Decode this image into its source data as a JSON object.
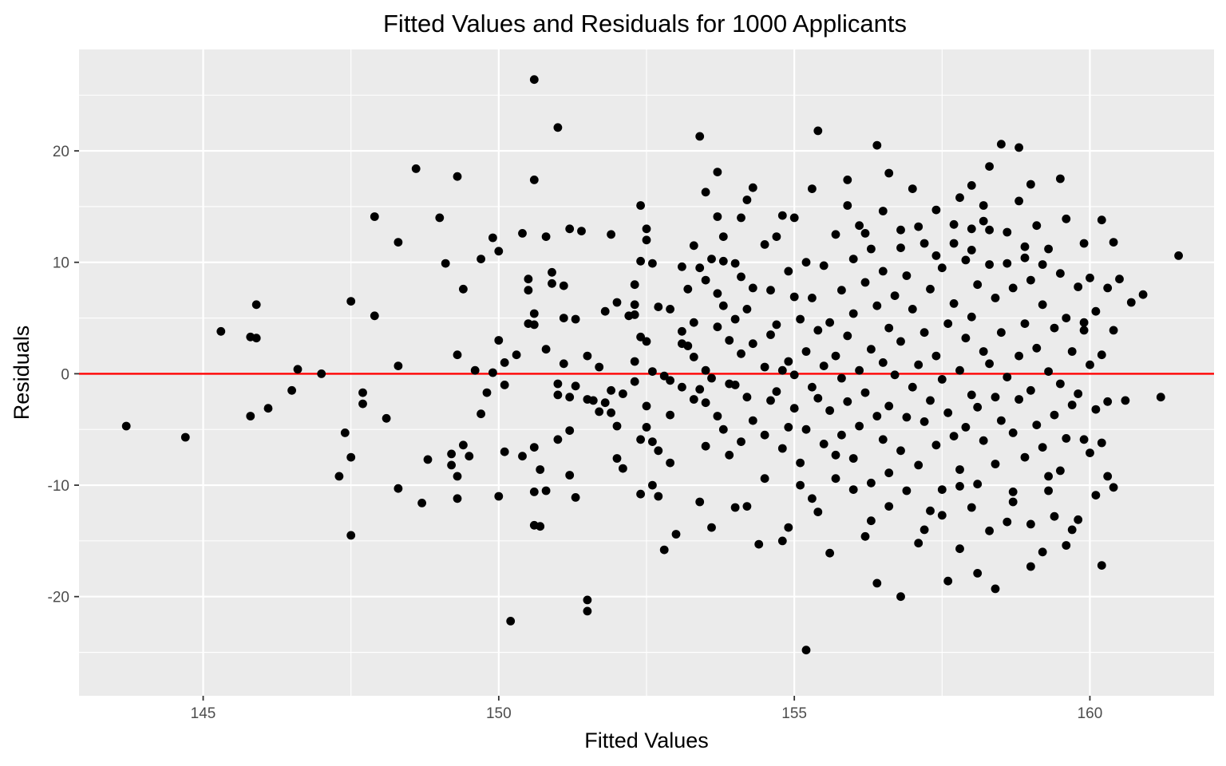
{
  "chart_data": {
    "type": "scatter",
    "title": "Fitted Values and Residuals for 1000 Applicants",
    "xlabel": "Fitted Values",
    "ylabel": "Residuals",
    "xlim": [
      142.9,
      162.1
    ],
    "ylim": [
      -28.9,
      29.1
    ],
    "x_ticks": [
      145,
      150,
      155,
      160
    ],
    "x_tick_labels": [
      "145",
      "150",
      "155",
      "160"
    ],
    "y_ticks": [
      -20,
      -10,
      0,
      10,
      20
    ],
    "y_tick_labels": [
      "-20",
      "-10",
      "0",
      "10",
      "20"
    ],
    "grid": true,
    "background": "#ebebeb",
    "point_color": "#000000",
    "reference_line": {
      "y": 0,
      "color": "#ff0000"
    },
    "points_shown": "sample of the 1000 plotted points, read off the axes",
    "points": [
      [
        143.7,
        -4.7
      ],
      [
        144.7,
        -5.7
      ],
      [
        145.3,
        3.8
      ],
      [
        145.8,
        3.3
      ],
      [
        145.8,
        -3.8
      ],
      [
        145.9,
        6.2
      ],
      [
        145.9,
        3.2
      ],
      [
        146.1,
        -3.1
      ],
      [
        146.5,
        -1.5
      ],
      [
        146.6,
        0.4
      ],
      [
        147.0,
        0.0
      ],
      [
        147.3,
        -9.2
      ],
      [
        147.4,
        -5.3
      ],
      [
        147.5,
        6.5
      ],
      [
        147.5,
        -7.5
      ],
      [
        147.5,
        -14.5
      ],
      [
        147.7,
        -1.7
      ],
      [
        147.7,
        -2.7
      ],
      [
        147.9,
        14.1
      ],
      [
        147.9,
        5.2
      ],
      [
        148.1,
        -4.0
      ],
      [
        148.3,
        11.8
      ],
      [
        148.3,
        0.7
      ],
      [
        148.3,
        -10.3
      ],
      [
        148.6,
        18.4
      ],
      [
        148.7,
        -11.6
      ],
      [
        148.8,
        -7.7
      ],
      [
        149.0,
        14.0
      ],
      [
        149.1,
        9.9
      ],
      [
        149.2,
        -7.2
      ],
      [
        149.2,
        -8.2
      ],
      [
        149.3,
        17.7
      ],
      [
        149.3,
        1.7
      ],
      [
        149.3,
        -9.2
      ],
      [
        149.3,
        -11.2
      ],
      [
        149.4,
        7.6
      ],
      [
        149.4,
        -6.4
      ],
      [
        149.5,
        -7.4
      ],
      [
        149.6,
        0.3
      ],
      [
        149.7,
        -3.6
      ],
      [
        149.7,
        10.3
      ],
      [
        149.8,
        -1.7
      ],
      [
        149.9,
        0.1
      ],
      [
        149.9,
        12.2
      ],
      [
        150.0,
        11.0
      ],
      [
        150.0,
        3.0
      ],
      [
        150.1,
        1.0
      ],
      [
        150.1,
        -1.0
      ],
      [
        150.1,
        -7.0
      ],
      [
        150.0,
        -11.0
      ],
      [
        150.2,
        -22.2
      ],
      [
        150.3,
        1.7
      ],
      [
        150.4,
        12.6
      ],
      [
        150.4,
        -7.4
      ],
      [
        150.5,
        4.5
      ],
      [
        150.5,
        7.5
      ],
      [
        150.5,
        8.5
      ],
      [
        150.6,
        26.4
      ],
      [
        150.6,
        17.4
      ],
      [
        150.6,
        5.4
      ],
      [
        150.6,
        4.4
      ],
      [
        150.6,
        -6.6
      ],
      [
        150.6,
        -10.6
      ],
      [
        150.6,
        -13.6
      ],
      [
        150.7,
        -8.6
      ],
      [
        150.7,
        -13.7
      ],
      [
        150.8,
        12.3
      ],
      [
        150.8,
        2.2
      ],
      [
        150.8,
        -10.5
      ],
      [
        150.9,
        9.1
      ],
      [
        150.9,
        8.1
      ],
      [
        151.0,
        22.1
      ],
      [
        151.0,
        -0.9
      ],
      [
        151.0,
        -1.9
      ],
      [
        151.0,
        -5.9
      ],
      [
        151.1,
        7.9
      ],
      [
        151.1,
        5.0
      ],
      [
        151.1,
        0.9
      ],
      [
        151.2,
        13.0
      ],
      [
        151.2,
        -2.1
      ],
      [
        151.2,
        -5.1
      ],
      [
        151.2,
        -9.1
      ],
      [
        151.3,
        4.9
      ],
      [
        151.3,
        -1.1
      ],
      [
        151.3,
        -11.1
      ],
      [
        151.4,
        12.8
      ],
      [
        151.5,
        1.6
      ],
      [
        151.5,
        -2.3
      ],
      [
        151.5,
        -20.3
      ],
      [
        151.5,
        -21.3
      ],
      [
        151.6,
        -2.4
      ],
      [
        151.7,
        0.6
      ],
      [
        151.7,
        -3.4
      ],
      [
        151.8,
        5.6
      ],
      [
        151.8,
        -2.6
      ],
      [
        151.9,
        12.5
      ],
      [
        151.9,
        -1.5
      ],
      [
        151.9,
        -3.5
      ],
      [
        152.0,
        6.4
      ],
      [
        152.0,
        -4.7
      ],
      [
        152.0,
        -7.6
      ],
      [
        152.1,
        -1.8
      ],
      [
        152.1,
        -8.5
      ],
      [
        152.2,
        5.2
      ],
      [
        152.3,
        6.2
      ],
      [
        152.3,
        8.0
      ],
      [
        152.3,
        5.3
      ],
      [
        152.3,
        1.1
      ],
      [
        152.3,
        -0.7
      ],
      [
        152.4,
        15.1
      ],
      [
        152.4,
        10.1
      ],
      [
        152.4,
        3.3
      ],
      [
        152.4,
        -5.9
      ],
      [
        152.4,
        -10.8
      ],
      [
        152.5,
        13.0
      ],
      [
        152.5,
        12.0
      ],
      [
        152.5,
        2.9
      ],
      [
        152.5,
        -2.9
      ],
      [
        152.5,
        -4.8
      ],
      [
        152.6,
        9.9
      ],
      [
        152.6,
        0.2
      ],
      [
        152.6,
        -10.0
      ],
      [
        152.7,
        6.0
      ],
      [
        152.7,
        -6.9
      ],
      [
        152.7,
        -11.0
      ],
      [
        152.8,
        -0.2
      ],
      [
        152.8,
        -15.8
      ],
      [
        152.9,
        5.8
      ],
      [
        152.9,
        -8.0
      ],
      [
        153.0,
        -14.4
      ],
      [
        153.1,
        9.6
      ],
      [
        153.1,
        3.8
      ],
      [
        153.1,
        2.7
      ],
      [
        153.1,
        -1.2
      ],
      [
        153.2,
        7.6
      ],
      [
        153.2,
        2.5
      ],
      [
        153.3,
        11.5
      ],
      [
        153.3,
        4.6
      ],
      [
        153.3,
        1.5
      ],
      [
        153.3,
        -2.3
      ],
      [
        153.4,
        21.3
      ],
      [
        153.4,
        9.5
      ],
      [
        153.4,
        -1.4
      ],
      [
        153.4,
        -11.5
      ],
      [
        153.5,
        16.3
      ],
      [
        153.5,
        8.4
      ],
      [
        153.5,
        0.3
      ],
      [
        153.5,
        -2.6
      ],
      [
        153.5,
        -6.5
      ],
      [
        153.6,
        10.3
      ],
      [
        153.6,
        -13.8
      ],
      [
        153.7,
        18.1
      ],
      [
        153.7,
        7.2
      ],
      [
        153.7,
        4.2
      ],
      [
        153.7,
        -3.8
      ],
      [
        153.8,
        10.1
      ],
      [
        153.8,
        6.1
      ],
      [
        153.8,
        -5.0
      ],
      [
        153.9,
        3.0
      ],
      [
        153.9,
        -0.9
      ],
      [
        154.0,
        9.9
      ],
      [
        154.0,
        4.9
      ],
      [
        154.0,
        -1.0
      ],
      [
        154.0,
        -12.0
      ],
      [
        154.1,
        8.7
      ],
      [
        154.1,
        1.8
      ],
      [
        154.1,
        -6.1
      ],
      [
        154.2,
        5.8
      ],
      [
        154.2,
        -2.1
      ],
      [
        154.3,
        16.7
      ],
      [
        154.3,
        7.7
      ],
      [
        154.3,
        2.7
      ],
      [
        154.3,
        -4.2
      ],
      [
        154.4,
        -15.3
      ],
      [
        154.5,
        11.6
      ],
      [
        154.5,
        0.6
      ],
      [
        154.5,
        -5.5
      ],
      [
        154.6,
        7.5
      ],
      [
        154.6,
        3.5
      ],
      [
        154.6,
        -2.4
      ],
      [
        154.7,
        12.3
      ],
      [
        154.7,
        4.4
      ],
      [
        154.7,
        -1.6
      ],
      [
        154.8,
        14.2
      ],
      [
        154.8,
        0.3
      ],
      [
        154.8,
        -6.7
      ],
      [
        154.9,
        9.2
      ],
      [
        154.9,
        1.1
      ],
      [
        154.9,
        -4.8
      ],
      [
        154.9,
        -13.8
      ],
      [
        155.0,
        14.0
      ],
      [
        155.0,
        6.9
      ],
      [
        155.0,
        -0.1
      ],
      [
        155.0,
        -3.1
      ],
      [
        155.1,
        4.9
      ],
      [
        155.1,
        -8.0
      ],
      [
        155.2,
        10.0
      ],
      [
        155.2,
        2.0
      ],
      [
        155.2,
        -5.0
      ],
      [
        155.2,
        -24.8
      ],
      [
        155.3,
        6.8
      ],
      [
        155.3,
        -1.2
      ],
      [
        155.3,
        -11.2
      ],
      [
        155.4,
        21.8
      ],
      [
        155.4,
        3.9
      ],
      [
        155.4,
        -2.2
      ],
      [
        155.5,
        9.7
      ],
      [
        155.5,
        0.7
      ],
      [
        155.5,
        -6.3
      ],
      [
        155.6,
        4.6
      ],
      [
        155.6,
        -3.3
      ],
      [
        155.6,
        -16.1
      ],
      [
        155.7,
        12.5
      ],
      [
        155.7,
        1.6
      ],
      [
        155.7,
        -9.4
      ],
      [
        155.8,
        7.5
      ],
      [
        155.8,
        -0.4
      ],
      [
        155.8,
        -5.5
      ],
      [
        155.9,
        17.4
      ],
      [
        155.9,
        3.4
      ],
      [
        155.9,
        -2.5
      ],
      [
        156.0,
        10.3
      ],
      [
        156.0,
        5.4
      ],
      [
        156.0,
        -7.6
      ],
      [
        156.1,
        13.3
      ],
      [
        156.1,
        0.3
      ],
      [
        156.1,
        -4.7
      ],
      [
        156.2,
        8.2
      ],
      [
        156.2,
        -1.7
      ],
      [
        156.2,
        -14.6
      ],
      [
        156.3,
        11.2
      ],
      [
        156.3,
        2.2
      ],
      [
        156.3,
        -9.8
      ],
      [
        156.4,
        6.1
      ],
      [
        156.4,
        -3.8
      ],
      [
        156.4,
        -18.8
      ],
      [
        156.5,
        9.2
      ],
      [
        156.5,
        1.0
      ],
      [
        156.5,
        -5.9
      ],
      [
        156.6,
        18.0
      ],
      [
        156.6,
        4.1
      ],
      [
        156.6,
        -2.9
      ],
      [
        156.6,
        -11.9
      ],
      [
        156.7,
        7.0
      ],
      [
        156.7,
        -0.1
      ],
      [
        156.8,
        12.9
      ],
      [
        156.8,
        2.9
      ],
      [
        156.8,
        -6.9
      ],
      [
        156.8,
        -20.0
      ],
      [
        156.9,
        8.8
      ],
      [
        156.9,
        -3.9
      ],
      [
        157.0,
        16.6
      ],
      [
        157.0,
        5.8
      ],
      [
        157.0,
        -1.2
      ],
      [
        157.1,
        0.8
      ],
      [
        157.1,
        -8.2
      ],
      [
        157.1,
        -15.2
      ],
      [
        157.2,
        11.7
      ],
      [
        157.2,
        3.7
      ],
      [
        157.2,
        -4.3
      ],
      [
        157.3,
        7.6
      ],
      [
        157.3,
        -2.4
      ],
      [
        157.3,
        -12.3
      ],
      [
        157.4,
        14.7
      ],
      [
        157.4,
        1.6
      ],
      [
        157.4,
        -6.4
      ],
      [
        157.5,
        9.5
      ],
      [
        157.5,
        -0.5
      ],
      [
        157.5,
        -10.4
      ],
      [
        157.6,
        4.5
      ],
      [
        157.6,
        -3.5
      ],
      [
        157.6,
        -18.6
      ],
      [
        157.7,
        11.7
      ],
      [
        157.7,
        6.3
      ],
      [
        157.7,
        -5.6
      ],
      [
        157.8,
        0.3
      ],
      [
        157.8,
        -8.6
      ],
      [
        157.8,
        -15.7
      ],
      [
        157.9,
        10.2
      ],
      [
        157.9,
        3.2
      ],
      [
        157.9,
        -4.8
      ],
      [
        158.0,
        13.0
      ],
      [
        158.0,
        5.1
      ],
      [
        158.0,
        -1.9
      ],
      [
        158.0,
        -12.0
      ],
      [
        158.1,
        8.0
      ],
      [
        158.1,
        -3.0
      ],
      [
        158.1,
        -9.9
      ],
      [
        158.2,
        15.1
      ],
      [
        158.2,
        2.0
      ],
      [
        158.2,
        -6.0
      ],
      [
        158.3,
        9.8
      ],
      [
        158.3,
        0.9
      ],
      [
        158.3,
        -14.1
      ],
      [
        158.4,
        6.8
      ],
      [
        158.4,
        -2.1
      ],
      [
        158.4,
        -8.1
      ],
      [
        158.5,
        20.6
      ],
      [
        158.5,
        3.7
      ],
      [
        158.5,
        -4.2
      ],
      [
        158.6,
        12.7
      ],
      [
        158.6,
        -0.3
      ],
      [
        158.6,
        -13.3
      ],
      [
        158.7,
        7.7
      ],
      [
        158.7,
        -5.3
      ],
      [
        158.7,
        -10.6
      ],
      [
        158.8,
        15.5
      ],
      [
        158.8,
        1.6
      ],
      [
        158.8,
        -2.3
      ],
      [
        158.9,
        10.4
      ],
      [
        158.9,
        4.5
      ],
      [
        158.9,
        -7.5
      ],
      [
        159.0,
        8.4
      ],
      [
        159.0,
        -1.5
      ],
      [
        159.0,
        -13.5
      ],
      [
        159.1,
        13.3
      ],
      [
        159.1,
        2.3
      ],
      [
        159.1,
        -4.6
      ],
      [
        159.2,
        6.2
      ],
      [
        159.2,
        -6.6
      ],
      [
        159.2,
        -16.0
      ],
      [
        159.3,
        11.2
      ],
      [
        159.3,
        0.2
      ],
      [
        159.3,
        -9.2
      ],
      [
        159.4,
        4.1
      ],
      [
        159.4,
        -3.7
      ],
      [
        159.4,
        -12.8
      ],
      [
        159.5,
        9.0
      ],
      [
        159.5,
        -0.9
      ],
      [
        159.5,
        -8.7
      ],
      [
        159.6,
        13.9
      ],
      [
        159.6,
        5.0
      ],
      [
        159.6,
        -5.8
      ],
      [
        159.7,
        2.0
      ],
      [
        159.7,
        -2.8
      ],
      [
        159.7,
        -14.0
      ],
      [
        159.8,
        7.8
      ],
      [
        159.8,
        -1.8
      ],
      [
        159.8,
        -13.1
      ],
      [
        159.9,
        11.7
      ],
      [
        159.9,
        3.9
      ],
      [
        159.9,
        -5.9
      ],
      [
        160.0,
        8.6
      ],
      [
        160.0,
        0.8
      ],
      [
        160.0,
        -7.1
      ],
      [
        160.1,
        5.6
      ],
      [
        160.1,
        -3.2
      ],
      [
        160.1,
        -10.9
      ],
      [
        160.2,
        13.8
      ],
      [
        160.2,
        1.7
      ],
      [
        160.2,
        -6.2
      ],
      [
        160.2,
        -17.2
      ],
      [
        160.3,
        7.7
      ],
      [
        160.3,
        -2.5
      ],
      [
        160.3,
        -9.2
      ],
      [
        160.4,
        11.8
      ],
      [
        160.4,
        3.9
      ],
      [
        160.4,
        -10.2
      ],
      [
        160.5,
        8.5
      ],
      [
        160.6,
        -2.4
      ],
      [
        160.7,
        6.4
      ],
      [
        160.9,
        7.1
      ],
      [
        161.2,
        -2.1
      ],
      [
        161.5,
        10.6
      ],
      [
        152.6,
        -6.1
      ],
      [
        152.9,
        -3.7
      ],
      [
        153.6,
        -0.4
      ],
      [
        153.9,
        -7.3
      ],
      [
        154.2,
        -11.9
      ],
      [
        154.5,
        -9.4
      ],
      [
        154.8,
        -15.0
      ],
      [
        155.1,
        -10.0
      ],
      [
        155.4,
        -12.4
      ],
      [
        155.7,
        -7.3
      ],
      [
        156.0,
        -10.4
      ],
      [
        156.3,
        -13.2
      ],
      [
        156.6,
        -8.9
      ],
      [
        156.9,
        -10.5
      ],
      [
        157.2,
        -14.0
      ],
      [
        157.5,
        -12.7
      ],
      [
        157.8,
        -10.1
      ],
      [
        158.1,
        -17.9
      ],
      [
        158.4,
        -19.3
      ],
      [
        158.7,
        -11.5
      ],
      [
        159.0,
        -17.3
      ],
      [
        159.3,
        -10.5
      ],
      [
        159.6,
        -15.4
      ],
      [
        155.9,
        15.1
      ],
      [
        156.2,
        12.6
      ],
      [
        156.5,
        14.6
      ],
      [
        156.8,
        11.3
      ],
      [
        157.1,
        13.2
      ],
      [
        157.4,
        10.6
      ],
      [
        157.7,
        13.4
      ],
      [
        158.0,
        11.1
      ],
      [
        158.3,
        12.9
      ],
      [
        158.6,
        9.9
      ],
      [
        158.9,
        11.4
      ],
      [
        159.2,
        9.8
      ],
      [
        159.5,
        17.5
      ],
      [
        159.9,
        4.6
      ],
      [
        155.3,
        16.6
      ],
      [
        154.2,
        15.6
      ],
      [
        153.8,
        12.3
      ],
      [
        156.4,
        20.5
      ],
      [
        158.8,
        20.3
      ],
      [
        158.3,
        18.6
      ],
      [
        157.8,
        15.8
      ],
      [
        158.2,
        13.7
      ],
      [
        153.7,
        14.1
      ],
      [
        154.1,
        14.0
      ],
      [
        159.0,
        17.0
      ],
      [
        158.0,
        16.9
      ],
      [
        152.9,
        -0.6
      ]
    ]
  }
}
